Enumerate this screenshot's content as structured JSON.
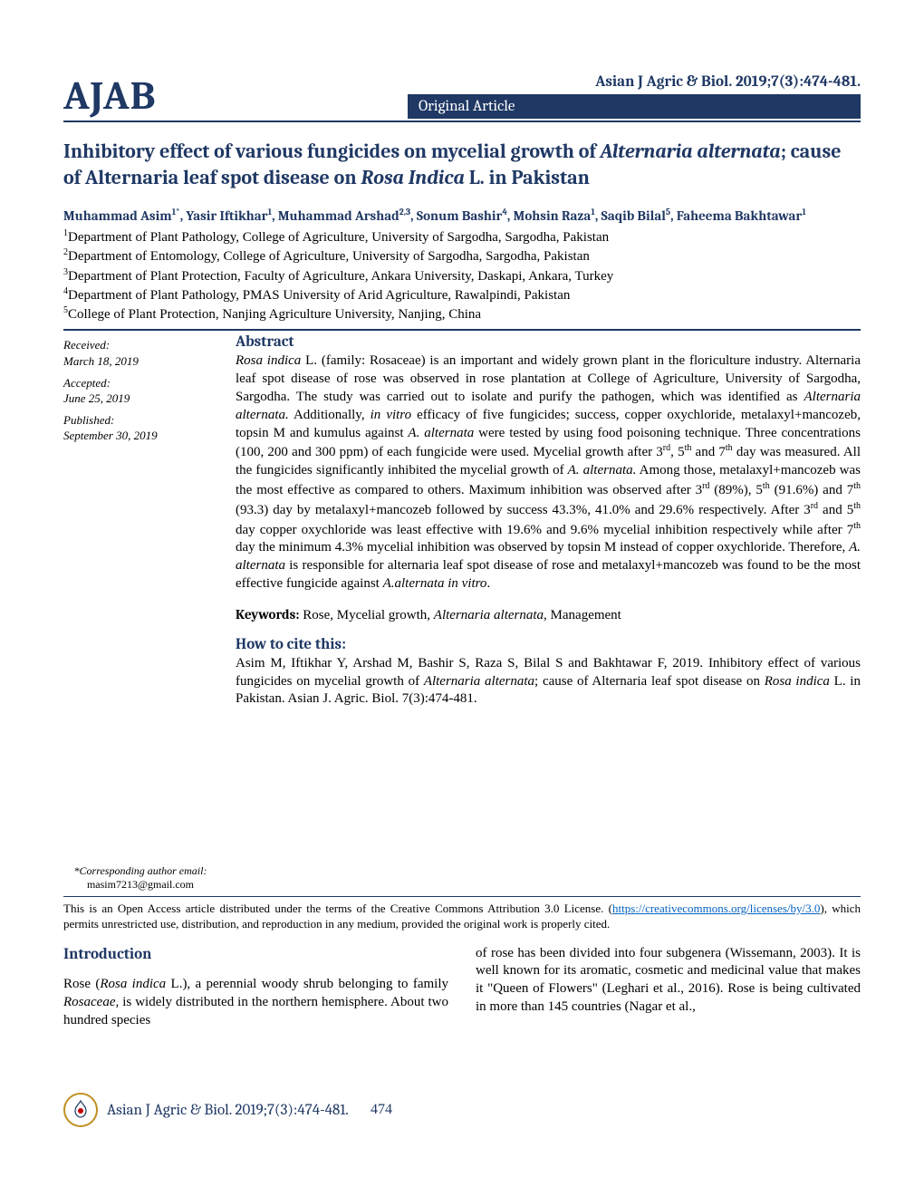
{
  "header": {
    "logo": "AJAB",
    "citation": "Asian J Agric & Biol. 2019;7(3):474-481.",
    "article_type": "Original Article"
  },
  "title_html": "Inhibitory effect of various fungicides on mycelial growth of <span class='italic'>Alternaria alternata</span>; cause of Alternaria leaf spot disease on <span class='italic'>Rosa Indica</span> L. in Pakistan",
  "authors_html": "Muhammad Asim<sup>1*</sup>, Yasir Iftikhar<sup>1</sup>, Muhammad Arshad<sup>2,3</sup>, Sonum Bashir<sup>4</sup>, Mohsin Raza<sup>1</sup>, Saqib Bilal<sup>5</sup>, Faheema Bakhtawar<sup>1</sup>",
  "affiliations": [
    "<sup>1</sup>Department of Plant Pathology, College of Agriculture, University of Sargodha, Sargodha, Pakistan",
    "<sup>2</sup>Department of Entomology, College of Agriculture, University of Sargodha, Sargodha, Pakistan",
    "<sup>3</sup>Department of Plant Protection, Faculty of Agriculture, Ankara University, Daskapi, Ankara, Turkey",
    "<sup>4</sup>Department of Plant Pathology, PMAS University of Arid Agriculture, Rawalpindi, Pakistan",
    "<sup>5</sup>College of Plant Protection, Nanjing Agriculture University, Nanjing, China"
  ],
  "dates": {
    "received_label": "Received:",
    "received_value": "March 18, 2019",
    "accepted_label": "Accepted:",
    "accepted_value": "June 25, 2019",
    "published_label": "Published:",
    "published_value": "September 30, 2019"
  },
  "abstract": {
    "heading": "Abstract",
    "text_html": "<span class='italic'>Rosa indica</span> L. (family: Rosaceae) is an important and widely grown plant in the floriculture industry. Alternaria leaf spot disease of rose was observed in rose plantation at College of Agriculture, University of Sargodha, Sargodha. The study was carried out to isolate and purify the pathogen, which was identified as <span class='italic'>Alternaria alternata.</span> Additionally, <span class='italic'>in vitro</span> efficacy of five fungicides; success, copper oxychloride, metalaxyl+mancozeb, topsin M and kumulus against <span class='italic'>A. alternata</span> were tested by using food poisoning technique. Three concentrations (100, 200 and 300 ppm) of each fungicide were used. Mycelial growth after 3<sup>rd</sup>, 5<sup>th</sup> and 7<sup>th</sup> day was measured. All the fungicides significantly inhibited the mycelial growth of <span class='italic'>A. alternata.</span> Among those, metalaxyl+mancozeb was the most effective as compared to others. Maximum inhibition was observed after 3<sup>rd</sup> (89%), 5<sup>th</sup> (91.6%) and 7<sup>th</sup> (93.3) day by metalaxyl+mancozeb followed by success 43.3%, 41.0% and 29.6% respectively. After 3<sup>rd</sup> and 5<sup>th</sup> day copper oxychloride was least effective with 19.6% and 9.6% mycelial inhibition respectively while after 7<sup>th</sup> day the minimum 4.3% mycelial inhibition was observed by topsin M instead of copper oxychloride. Therefore, <span class='italic'>A. alternata</span> is responsible for alternaria leaf spot disease of rose and metalaxyl+mancozeb was found to be the most effective fungicide against <span class='italic'>A.alternata in vitro</span>."
  },
  "keywords": {
    "label": "Keywords:",
    "text_html": " Rose, Mycelial growth, <span class='italic'>Alternaria alternata</span>, Management"
  },
  "cite": {
    "heading": "How to cite this:",
    "text_html": "Asim M, Iftikhar Y, Arshad M, Bashir S, Raza S, Bilal S and Bakhtawar F, 2019. Inhibitory effect of various fungicides on mycelial growth of <span class='italic'>Alternaria alternata</span>; cause of Alternaria leaf spot disease on <span class='italic'>Rosa indica</span> L. in Pakistan. Asian J. Agric. Biol. 7(3):474-481."
  },
  "corresponding": {
    "label": "*Corresponding author email:",
    "email": "masim7213@gmail.com"
  },
  "license": {
    "text_before": "This is an Open Access article distributed under the terms of the Creative Commons Attribution 3.0 License. (",
    "link_text": "https://creativecommons.org/licenses/by/3.0",
    "text_after": "), which permits unrestricted use, distribution, and reproduction in any medium, provided the original work is properly cited."
  },
  "introduction": {
    "heading": "Introduction",
    "col1_html": "Rose (<span class='italic'>Rosa indica</span> L.), a perennial woody shrub belonging to family <span class='italic'>Rosaceae,</span> is widely distributed in the northern hemisphere. About two hundred species",
    "col2_html": "of rose has been divided into four subgenera (Wissemann, 2003). It is well known for its aromatic, cosmetic and medicinal value that makes it \"Queen of Flowers\" (Leghari et al., 2016). Rose is being cultivated in more than 145 countries (Nagar et al.,"
  },
  "footer": {
    "citation": "Asian J Agric & Biol. 2019;7(3):474-481.",
    "page": "474"
  },
  "colors": {
    "primary": "#1f3864",
    "link": "#0563c1",
    "background": "#ffffff",
    "text": "#000000"
  }
}
